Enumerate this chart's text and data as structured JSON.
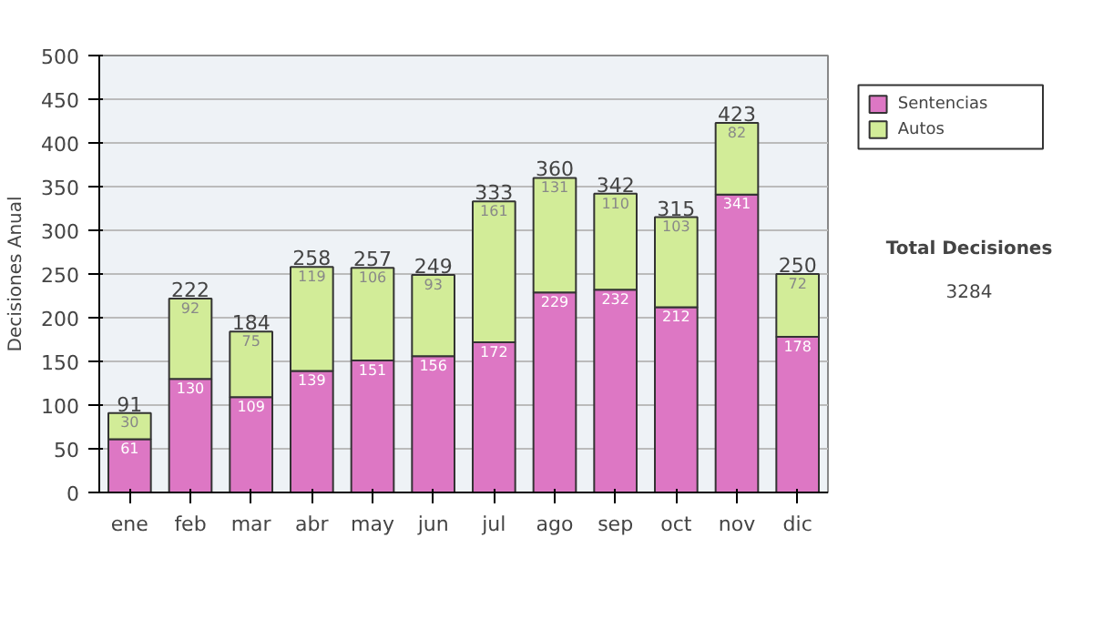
{
  "chart_data": {
    "type": "bar",
    "stacked": true,
    "ylabel": "Decisiones Anual",
    "categories": [
      "ene",
      "feb",
      "mar",
      "abr",
      "may",
      "jun",
      "jul",
      "ago",
      "sep",
      "oct",
      "nov",
      "dic"
    ],
    "series": [
      {
        "name": "Sentencias",
        "color": "#dd77c4",
        "values": [
          61,
          130,
          109,
          139,
          151,
          156,
          172,
          229,
          232,
          212,
          341,
          178
        ]
      },
      {
        "name": "Autos",
        "color": "#d2ec98",
        "values": [
          30,
          92,
          75,
          119,
          106,
          93,
          161,
          131,
          110,
          103,
          82,
          72
        ]
      }
    ],
    "totals": [
      "91",
      "222",
      "184",
      "258",
      "257",
      "249",
      "333",
      "360",
      "342",
      "315",
      "423",
      "250"
    ],
    "data_labels": true,
    "ylim": [
      0,
      500
    ],
    "yticks": [
      0,
      50,
      100,
      150,
      200,
      250,
      300,
      350,
      400,
      450,
      500
    ],
    "grid": "y",
    "legend": "right",
    "annotations": [
      "Total Decisiones",
      "3284"
    ]
  }
}
